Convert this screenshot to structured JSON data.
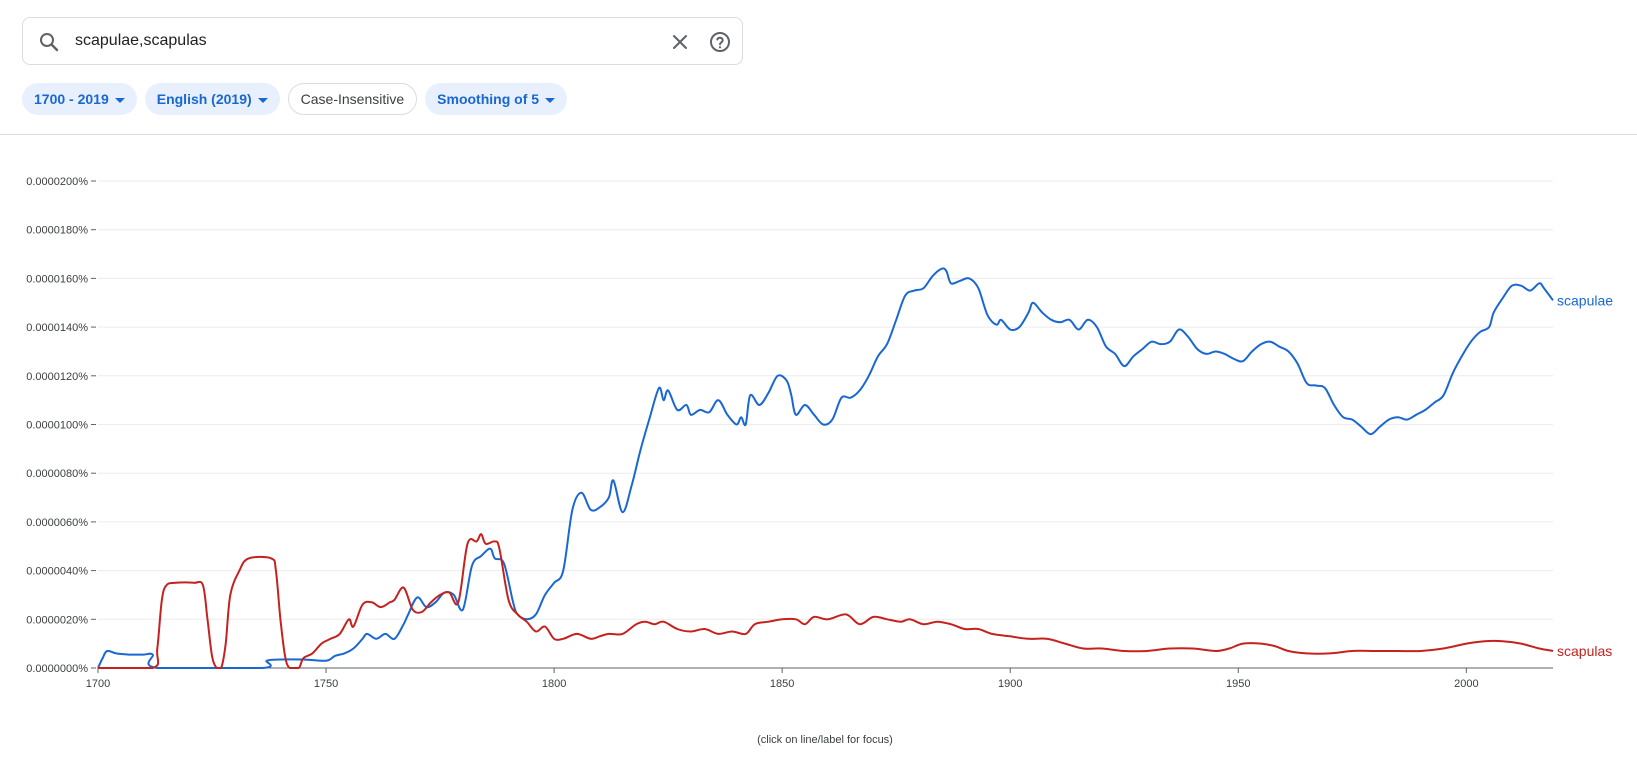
{
  "search": {
    "query": "scapulae,scapulas",
    "search_icon": "search-icon",
    "clear_icon": "close-icon",
    "help_icon": "help-circle-icon"
  },
  "filters": [
    {
      "label": "1700 - 2019",
      "style": "active",
      "dropdown": true
    },
    {
      "label": "English (2019)",
      "style": "active",
      "dropdown": true
    },
    {
      "label": "Case-Insensitive",
      "style": "plain",
      "dropdown": false
    },
    {
      "label": "Smoothing of 5",
      "style": "active",
      "dropdown": true
    }
  ],
  "chart_data": {
    "type": "line",
    "xlabel": "",
    "ylabel": "",
    "xlim": [
      1700,
      2019
    ],
    "ylim": [
      0,
      2e-05
    ],
    "x_ticks": [
      1700,
      1750,
      1800,
      1850,
      1900,
      1950,
      2000
    ],
    "y_ticks": [
      {
        "value": 0.0,
        "label": "0.0000000%"
      },
      {
        "value": 2e-06,
        "label": "0.0000020%"
      },
      {
        "value": 4e-06,
        "label": "0.0000040%"
      },
      {
        "value": 6e-06,
        "label": "0.0000060%"
      },
      {
        "value": 8e-06,
        "label": "0.0000080%"
      },
      {
        "value": 1e-05,
        "label": "0.0000100%"
      },
      {
        "value": 1.2e-05,
        "label": "0.0000120%"
      },
      {
        "value": 1.4e-05,
        "label": "0.0000140%"
      },
      {
        "value": 1.6e-05,
        "label": "0.0000160%"
      },
      {
        "value": 1.8e-05,
        "label": "0.0000180%"
      },
      {
        "value": 2e-05,
        "label": "0.0000200%"
      }
    ],
    "grid": true,
    "footnote": "(click on line/label for focus)",
    "series": [
      {
        "name": "scapulae",
        "color": "#1967d2",
        "points": [
          [
            1700,
            0.0
          ],
          [
            1701,
            4e-07
          ],
          [
            1702,
            7e-07
          ],
          [
            1704,
            6e-07
          ],
          [
            1707,
            5.5e-07
          ],
          [
            1710,
            5.5e-07
          ],
          [
            1712,
            5.5e-07
          ],
          [
            1713,
            0.0
          ],
          [
            1736,
            0.0
          ],
          [
            1737,
            3e-07
          ],
          [
            1740,
            3.5e-07
          ],
          [
            1745,
            3.5e-07
          ],
          [
            1750,
            3e-07
          ],
          [
            1752,
            5e-07
          ],
          [
            1754,
            6e-07
          ],
          [
            1756,
            8e-07
          ],
          [
            1758,
            1.2e-06
          ],
          [
            1759,
            1.4e-06
          ],
          [
            1761,
            1.2e-06
          ],
          [
            1763,
            1.4e-06
          ],
          [
            1765,
            1.2e-06
          ],
          [
            1767,
            1.8e-06
          ],
          [
            1768,
            2.2e-06
          ],
          [
            1770,
            2.9e-06
          ],
          [
            1772,
            2.5e-06
          ],
          [
            1774,
            2.7e-06
          ],
          [
            1776,
            3.1e-06
          ],
          [
            1778,
            3e-06
          ],
          [
            1780,
            2.4e-06
          ],
          [
            1782,
            4.2e-06
          ],
          [
            1784,
            4.6e-06
          ],
          [
            1786,
            4.9e-06
          ],
          [
            1787,
            4.5e-06
          ],
          [
            1789,
            4.3e-06
          ],
          [
            1791,
            2.7e-06
          ],
          [
            1792,
            2.2e-06
          ],
          [
            1794,
            2e-06
          ],
          [
            1796,
            2.2e-06
          ],
          [
            1798,
            3e-06
          ],
          [
            1800,
            3.5e-06
          ],
          [
            1802,
            4e-06
          ],
          [
            1804,
            6.5e-06
          ],
          [
            1806,
            7.2e-06
          ],
          [
            1808,
            6.5e-06
          ],
          [
            1810,
            6.6e-06
          ],
          [
            1812,
            7e-06
          ],
          [
            1813,
            7.7e-06
          ],
          [
            1815,
            6.4e-06
          ],
          [
            1817,
            7.5e-06
          ],
          [
            1819,
            9e-06
          ],
          [
            1821,
            1.03e-05
          ],
          [
            1823,
            1.15e-05
          ],
          [
            1824,
            1.1e-05
          ],
          [
            1825,
            1.14e-05
          ],
          [
            1827,
            1.06e-05
          ],
          [
            1829,
            1.08e-05
          ],
          [
            1830,
            1.04e-05
          ],
          [
            1832,
            1.06e-05
          ],
          [
            1834,
            1.05e-05
          ],
          [
            1836,
            1.1e-05
          ],
          [
            1838,
            1.04e-05
          ],
          [
            1840,
            1e-05
          ],
          [
            1841,
            1.03e-05
          ],
          [
            1842,
            1e-05
          ],
          [
            1843,
            1.12e-05
          ],
          [
            1845,
            1.08e-05
          ],
          [
            1847,
            1.13e-05
          ],
          [
            1849,
            1.2e-05
          ],
          [
            1851,
            1.18e-05
          ],
          [
            1852,
            1.12e-05
          ],
          [
            1853,
            1.04e-05
          ],
          [
            1855,
            1.08e-05
          ],
          [
            1857,
            1.04e-05
          ],
          [
            1859,
            1e-05
          ],
          [
            1861,
            1.02e-05
          ],
          [
            1863,
            1.11e-05
          ],
          [
            1865,
            1.11e-05
          ],
          [
            1867,
            1.14e-05
          ],
          [
            1869,
            1.2e-05
          ],
          [
            1871,
            1.28e-05
          ],
          [
            1873,
            1.33e-05
          ],
          [
            1875,
            1.43e-05
          ],
          [
            1877,
            1.53e-05
          ],
          [
            1879,
            1.55e-05
          ],
          [
            1881,
            1.56e-05
          ],
          [
            1883,
            1.61e-05
          ],
          [
            1885,
            1.64e-05
          ],
          [
            1886,
            1.63e-05
          ],
          [
            1887,
            1.58e-05
          ],
          [
            1889,
            1.59e-05
          ],
          [
            1891,
            1.6e-05
          ],
          [
            1893,
            1.56e-05
          ],
          [
            1895,
            1.45e-05
          ],
          [
            1897,
            1.41e-05
          ],
          [
            1898,
            1.43e-05
          ],
          [
            1900,
            1.39e-05
          ],
          [
            1902,
            1.4e-05
          ],
          [
            1904,
            1.46e-05
          ],
          [
            1905,
            1.5e-05
          ],
          [
            1907,
            1.46e-05
          ],
          [
            1909,
            1.43e-05
          ],
          [
            1911,
            1.42e-05
          ],
          [
            1913,
            1.43e-05
          ],
          [
            1915,
            1.39e-05
          ],
          [
            1917,
            1.43e-05
          ],
          [
            1919,
            1.4e-05
          ],
          [
            1921,
            1.32e-05
          ],
          [
            1923,
            1.29e-05
          ],
          [
            1925,
            1.24e-05
          ],
          [
            1927,
            1.28e-05
          ],
          [
            1929,
            1.31e-05
          ],
          [
            1931,
            1.34e-05
          ],
          [
            1933,
            1.33e-05
          ],
          [
            1935,
            1.34e-05
          ],
          [
            1937,
            1.39e-05
          ],
          [
            1939,
            1.36e-05
          ],
          [
            1941,
            1.31e-05
          ],
          [
            1943,
            1.29e-05
          ],
          [
            1945,
            1.3e-05
          ],
          [
            1947,
            1.29e-05
          ],
          [
            1949,
            1.27e-05
          ],
          [
            1951,
            1.26e-05
          ],
          [
            1953,
            1.3e-05
          ],
          [
            1955,
            1.33e-05
          ],
          [
            1957,
            1.34e-05
          ],
          [
            1959,
            1.32e-05
          ],
          [
            1961,
            1.3e-05
          ],
          [
            1963,
            1.25e-05
          ],
          [
            1965,
            1.17e-05
          ],
          [
            1967,
            1.16e-05
          ],
          [
            1969,
            1.15e-05
          ],
          [
            1971,
            1.08e-05
          ],
          [
            1973,
            1.03e-05
          ],
          [
            1975,
            1.02e-05
          ],
          [
            1977,
            9.9e-06
          ],
          [
            1979,
            9.6e-06
          ],
          [
            1981,
            9.9e-06
          ],
          [
            1983,
            1.02e-05
          ],
          [
            1985,
            1.03e-05
          ],
          [
            1987,
            1.02e-05
          ],
          [
            1989,
            1.04e-05
          ],
          [
            1991,
            1.06e-05
          ],
          [
            1993,
            1.09e-05
          ],
          [
            1995,
            1.12e-05
          ],
          [
            1997,
            1.21e-05
          ],
          [
            1999,
            1.28e-05
          ],
          [
            2001,
            1.34e-05
          ],
          [
            2003,
            1.38e-05
          ],
          [
            2005,
            1.4e-05
          ],
          [
            2006,
            1.46e-05
          ],
          [
            2008,
            1.52e-05
          ],
          [
            2010,
            1.57e-05
          ],
          [
            2012,
            1.57e-05
          ],
          [
            2014,
            1.55e-05
          ],
          [
            2016,
            1.58e-05
          ],
          [
            2017,
            1.56e-05
          ],
          [
            2019,
            1.51e-05
          ]
        ]
      },
      {
        "name": "scapulas",
        "color": "#c5221f",
        "points": [
          [
            1700,
            0.0
          ],
          [
            1712,
            0.0
          ],
          [
            1713,
            8e-07
          ],
          [
            1714,
            2.8e-06
          ],
          [
            1715,
            3.4e-06
          ],
          [
            1717,
            3.5e-06
          ],
          [
            1721,
            3.5e-06
          ],
          [
            1723,
            3.4e-06
          ],
          [
            1724,
            2e-06
          ],
          [
            1725,
            5e-07
          ],
          [
            1726,
            0.0
          ],
          [
            1727,
            0.0
          ],
          [
            1728,
            1e-06
          ],
          [
            1729,
            3e-06
          ],
          [
            1731,
            4e-06
          ],
          [
            1733,
            4.5e-06
          ],
          [
            1738,
            4.5e-06
          ],
          [
            1739,
            4e-06
          ],
          [
            1740,
            2e-06
          ],
          [
            1741,
            5e-07
          ],
          [
            1742,
            0.0
          ],
          [
            1744,
            0.0
          ],
          [
            1745,
            4e-07
          ],
          [
            1747,
            6e-07
          ],
          [
            1749,
            1e-06
          ],
          [
            1751,
            1.2e-06
          ],
          [
            1753,
            1.4e-06
          ],
          [
            1755,
            2e-06
          ],
          [
            1756,
            1.7e-06
          ],
          [
            1758,
            2.6e-06
          ],
          [
            1760,
            2.7e-06
          ],
          [
            1762,
            2.5e-06
          ],
          [
            1764,
            2.7e-06
          ],
          [
            1765,
            2.8e-06
          ],
          [
            1767,
            3.3e-06
          ],
          [
            1769,
            2.4e-06
          ],
          [
            1771,
            2.3e-06
          ],
          [
            1773,
            2.7e-06
          ],
          [
            1775,
            3e-06
          ],
          [
            1777,
            3.1e-06
          ],
          [
            1779,
            2.7e-06
          ],
          [
            1781,
            5.1e-06
          ],
          [
            1783,
            5.2e-06
          ],
          [
            1784,
            5.5e-06
          ],
          [
            1785,
            5.1e-06
          ],
          [
            1787,
            5.2e-06
          ],
          [
            1788,
            4.9e-06
          ],
          [
            1790,
            2.8e-06
          ],
          [
            1792,
            2.2e-06
          ],
          [
            1794,
            1.9e-06
          ],
          [
            1796,
            1.5e-06
          ],
          [
            1798,
            1.7e-06
          ],
          [
            1800,
            1.2e-06
          ],
          [
            1802,
            1.2e-06
          ],
          [
            1805,
            1.4e-06
          ],
          [
            1808,
            1.2e-06
          ],
          [
            1810,
            1.3e-06
          ],
          [
            1812,
            1.4e-06
          ],
          [
            1815,
            1.4e-06
          ],
          [
            1818,
            1.8e-06
          ],
          [
            1820,
            1.9e-06
          ],
          [
            1822,
            1.8e-06
          ],
          [
            1824,
            1.9e-06
          ],
          [
            1827,
            1.6e-06
          ],
          [
            1830,
            1.5e-06
          ],
          [
            1833,
            1.6e-06
          ],
          [
            1836,
            1.4e-06
          ],
          [
            1839,
            1.5e-06
          ],
          [
            1842,
            1.4e-06
          ],
          [
            1844,
            1.8e-06
          ],
          [
            1847,
            1.9e-06
          ],
          [
            1850,
            2e-06
          ],
          [
            1853,
            2e-06
          ],
          [
            1855,
            1.8e-06
          ],
          [
            1857,
            2.1e-06
          ],
          [
            1860,
            2e-06
          ],
          [
            1864,
            2.2e-06
          ],
          [
            1867,
            1.8e-06
          ],
          [
            1870,
            2.1e-06
          ],
          [
            1873,
            2e-06
          ],
          [
            1876,
            1.9e-06
          ],
          [
            1878,
            2e-06
          ],
          [
            1881,
            1.8e-06
          ],
          [
            1884,
            1.9e-06
          ],
          [
            1887,
            1.8e-06
          ],
          [
            1890,
            1.6e-06
          ],
          [
            1893,
            1.6e-06
          ],
          [
            1896,
            1.4e-06
          ],
          [
            1900,
            1.3e-06
          ],
          [
            1904,
            1.2e-06
          ],
          [
            1908,
            1.2e-06
          ],
          [
            1912,
            1e-06
          ],
          [
            1916,
            8e-07
          ],
          [
            1920,
            8e-07
          ],
          [
            1925,
            7e-07
          ],
          [
            1930,
            7e-07
          ],
          [
            1935,
            8e-07
          ],
          [
            1940,
            8e-07
          ],
          [
            1945,
            7e-07
          ],
          [
            1948,
            8e-07
          ],
          [
            1951,
            1e-06
          ],
          [
            1955,
            1e-06
          ],
          [
            1958,
            9e-07
          ],
          [
            1961,
            7e-07
          ],
          [
            1965,
            6e-07
          ],
          [
            1970,
            6e-07
          ],
          [
            1975,
            7e-07
          ],
          [
            1980,
            7e-07
          ],
          [
            1985,
            7e-07
          ],
          [
            1990,
            7e-07
          ],
          [
            1995,
            8e-07
          ],
          [
            2000,
            1e-06
          ],
          [
            2004,
            1.1e-06
          ],
          [
            2008,
            1.1e-06
          ],
          [
            2012,
            1e-06
          ],
          [
            2016,
            8e-07
          ],
          [
            2019,
            7e-07
          ]
        ]
      }
    ]
  }
}
